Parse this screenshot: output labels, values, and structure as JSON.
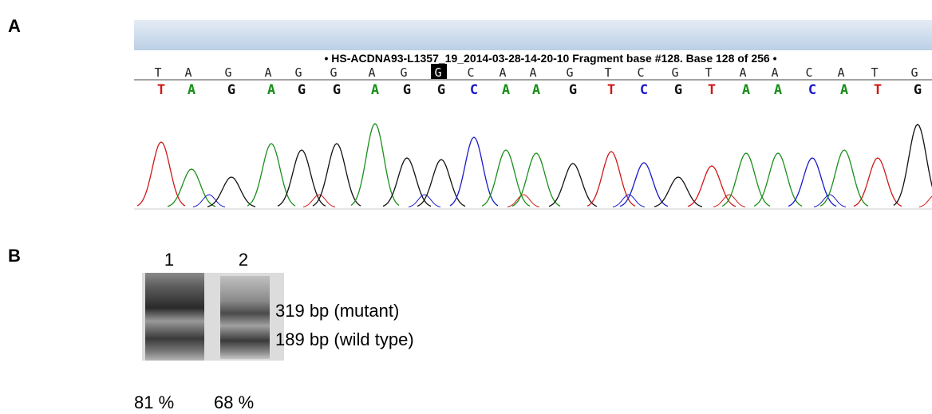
{
  "panel_a": {
    "label": "A",
    "title": "• HS-ACDNA93-L1357_19_2014-03-28-14-20-10 Fragment base #128. Base 128 of 256 •",
    "sequence_top": [
      "T",
      "A",
      "G",
      "A",
      "G",
      "G",
      "A",
      "G",
      "G",
      "C",
      "A",
      "A",
      "G",
      "T",
      "C",
      "G",
      "T",
      "A",
      "A",
      "C",
      "A",
      "T",
      "G"
    ],
    "sequence_bottom": [
      "T",
      "A",
      "G",
      "A",
      "G",
      "G",
      "A",
      "G",
      "G",
      "C",
      "A",
      "A",
      "G",
      "T",
      "C",
      "G",
      "T",
      "A",
      "A",
      "C",
      "A",
      "T",
      "G"
    ]
  },
  "panel_b": {
    "label": "B",
    "lanes": [
      "1",
      "2"
    ],
    "bands": [
      "319 bp (mutant)",
      "189 bp (wild type)"
    ],
    "percentages": [
      "81 %",
      "68 %"
    ]
  }
}
